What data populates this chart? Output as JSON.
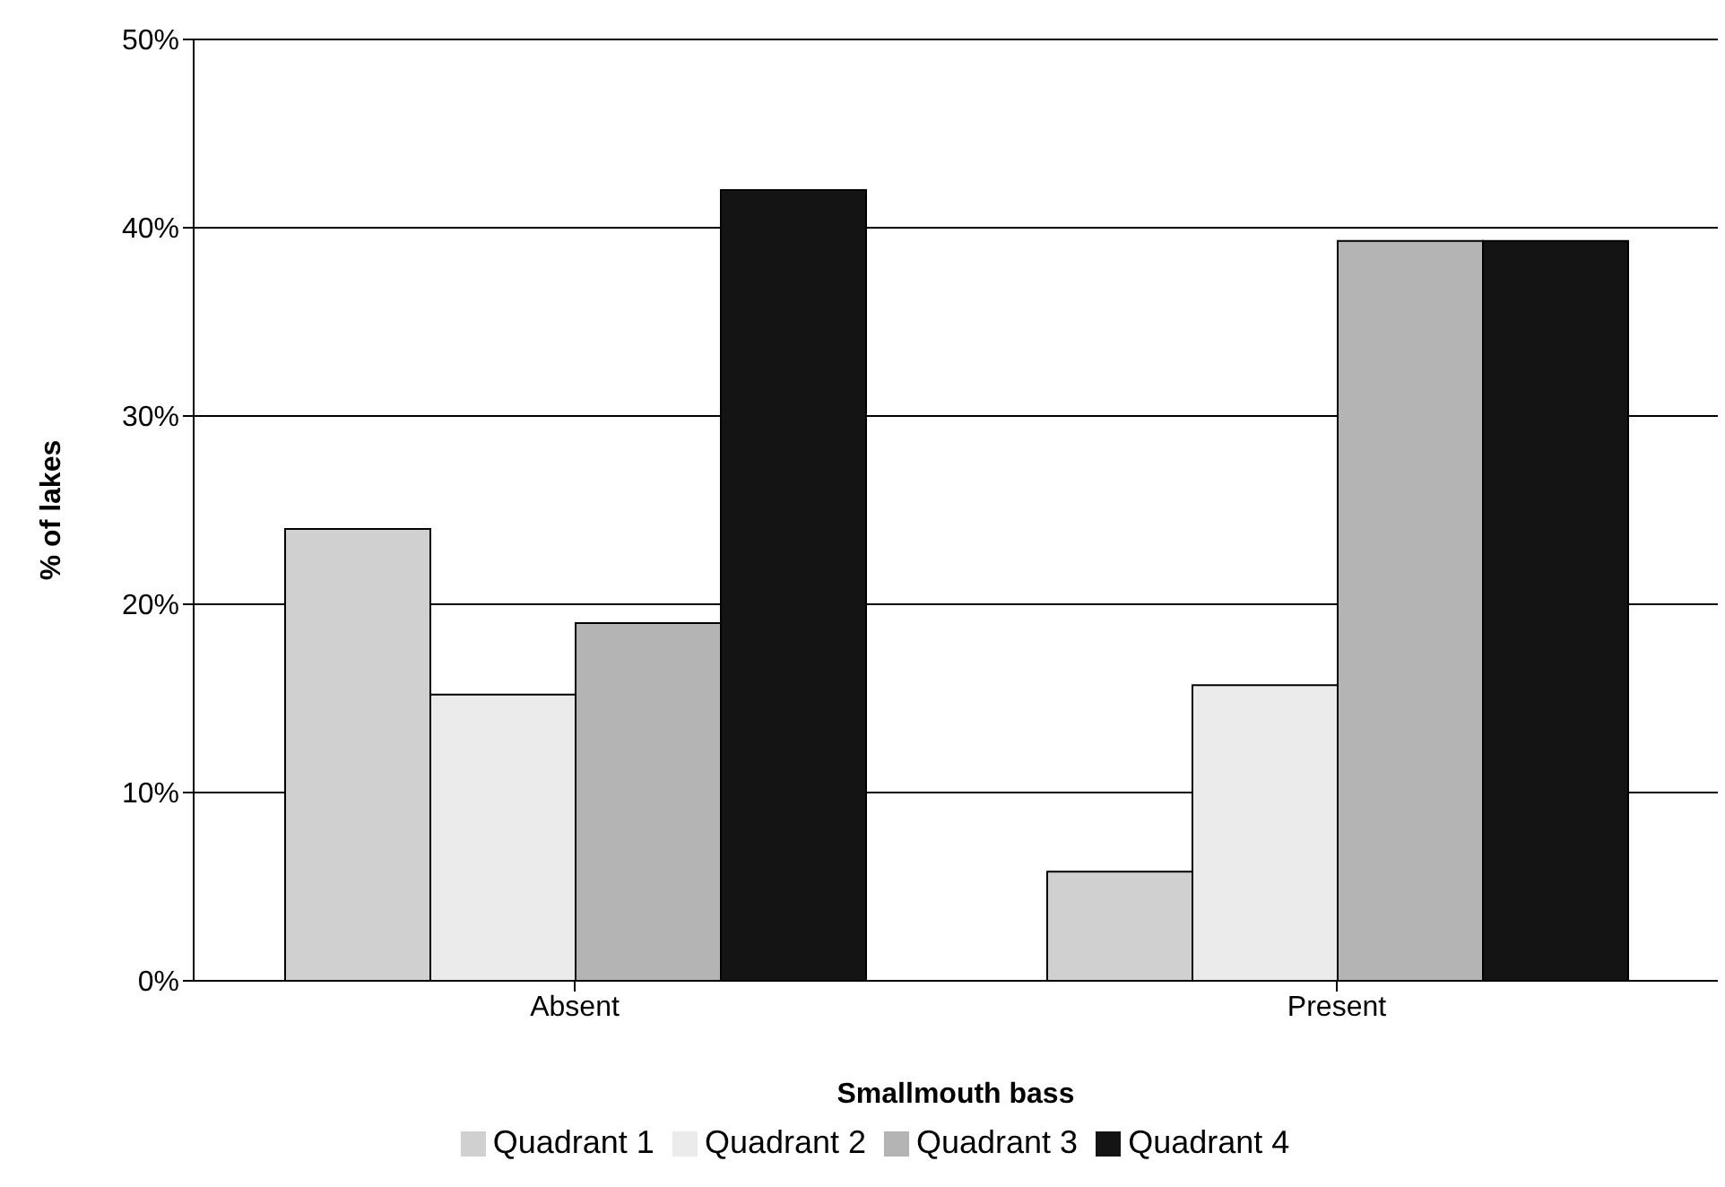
{
  "chart_data": {
    "type": "bar",
    "xlabel": "Smallmouth bass",
    "ylabel": "% of lakes",
    "categories": [
      "Absent",
      "Present"
    ],
    "series": [
      {
        "name": "Quadrant 1",
        "color": "#d0d0d0",
        "values": [
          24.0,
          5.8
        ]
      },
      {
        "name": "Quadrant 2",
        "color": "#ebebeb",
        "values": [
          15.2,
          15.7
        ]
      },
      {
        "name": "Quadrant 3",
        "color": "#b4b4b4",
        "values": [
          19.0,
          39.3
        ]
      },
      {
        "name": "Quadrant 4",
        "color": "#141414",
        "values": [
          42.0,
          39.3
        ]
      }
    ],
    "ylim": [
      0,
      50
    ],
    "yticks": [
      {
        "value": 0,
        "label": "0%"
      },
      {
        "value": 10,
        "label": "10%"
      },
      {
        "value": 20,
        "label": "20%"
      },
      {
        "value": 30,
        "label": "30%"
      },
      {
        "value": 40,
        "label": "40%"
      },
      {
        "value": 50,
        "label": "50%"
      }
    ],
    "grid": "y",
    "legend": "bottom"
  }
}
